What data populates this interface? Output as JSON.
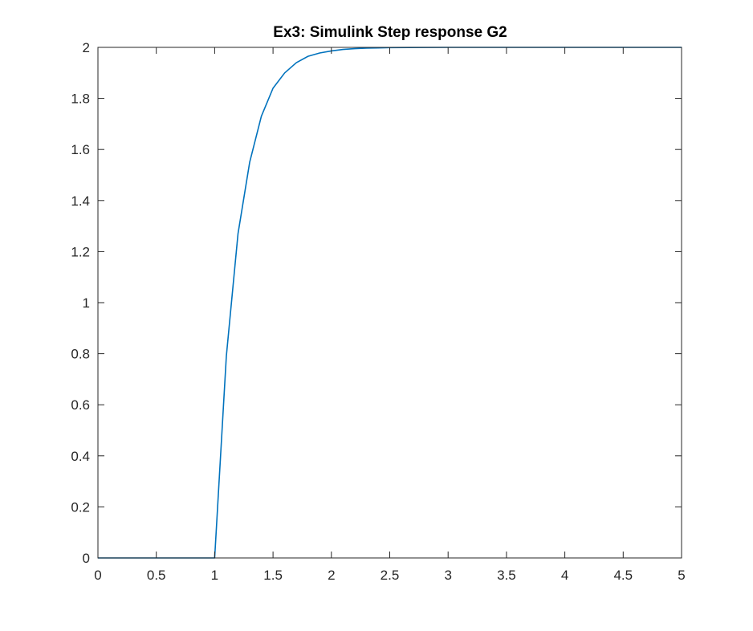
{
  "chart_data": {
    "type": "line",
    "title": "Ex3: Simulink Step response G2",
    "xlabel": "",
    "ylabel": "",
    "xlim": [
      0,
      5
    ],
    "ylim": [
      0,
      2
    ],
    "xticks": [
      0,
      0.5,
      1,
      1.5,
      2,
      2.5,
      3,
      3.5,
      4,
      4.5,
      5
    ],
    "xtick_labels": [
      "0",
      "0.5",
      "1",
      "1.5",
      "2",
      "2.5",
      "3",
      "3.5",
      "4",
      "4.5",
      "5"
    ],
    "yticks": [
      0,
      0.2,
      0.4,
      0.6,
      0.8,
      1,
      1.2,
      1.4,
      1.6,
      1.8,
      2
    ],
    "ytick_labels": [
      "0",
      "0.2",
      "0.4",
      "0.6",
      "0.8",
      "1",
      "1.2",
      "1.4",
      "1.6",
      "1.8",
      "2"
    ],
    "grid": false,
    "line_color": "#0072bd",
    "series": [
      {
        "x": [
          0,
          1,
          1.1,
          1.2,
          1.3,
          1.4,
          1.5,
          1.6,
          1.7,
          1.8,
          1.9,
          2.0,
          2.1,
          2.2,
          2.3,
          2.4,
          2.5,
          3,
          3.5,
          4,
          4.5,
          5
        ],
        "y": [
          0,
          0,
          0.79,
          1.27,
          1.55,
          1.73,
          1.84,
          1.9,
          1.94,
          1.965,
          1.978,
          1.986,
          1.992,
          1.995,
          1.997,
          1.998,
          1.999,
          2.0,
          2.0,
          2.0,
          2.0,
          2.0
        ]
      }
    ]
  }
}
